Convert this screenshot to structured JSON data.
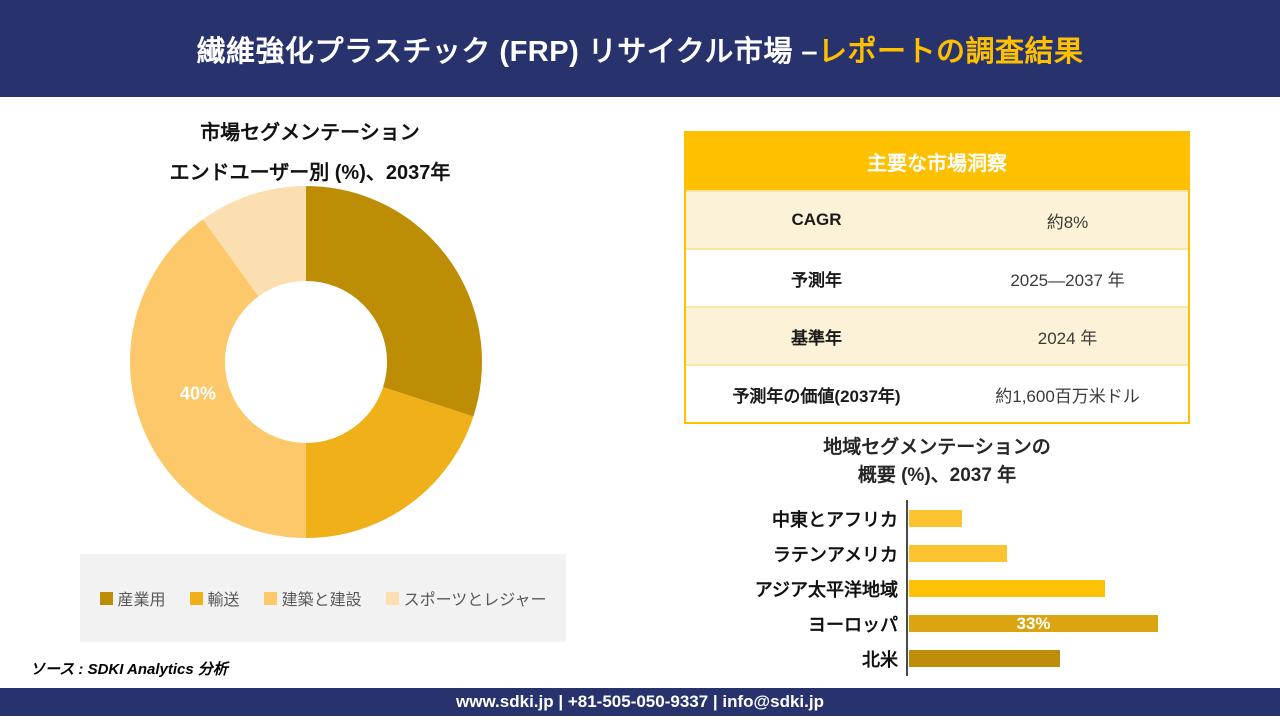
{
  "header": {
    "title_main": "繊維強化プラスチック (FRP) リサイクル市場 –",
    "title_accent": "レポートの調査結果"
  },
  "donut_section": {
    "title_line1": "市場セグメンテーション",
    "title_line2": "エンドユーザー別 (%)、2037年",
    "center_label": "40%"
  },
  "insights_table": {
    "header": "主要な市場洞察",
    "rows": [
      {
        "label": "CAGR",
        "value": "約8%"
      },
      {
        "label": "予測年",
        "value": "2025—2037 年"
      },
      {
        "label": "基準年",
        "value": "2024 年"
      },
      {
        "label": "予測年の価値(2037年)",
        "value": "約1,600百万米ドル"
      }
    ]
  },
  "bar_section": {
    "title_line1": "地域セグメンテーションの",
    "title_line2": "概要 (%)、2037 年"
  },
  "source_text": "ソース : SDKI Analytics 分析",
  "footer_text": "www.sdki.jp | +81-505-050-9337 | info@sdki.jp",
  "colors": {
    "navy": "#28336E",
    "gold": "#FFC000",
    "cream_row": "#FCF2D7",
    "white_row": "#FFFFFF",
    "legend_bg": "#F2F2F2"
  },
  "chart_data": [
    {
      "type": "pie",
      "subtype": "donut",
      "title": "市場セグメンテーション エンドユーザー別 (%)、2037年",
      "categories": [
        "産業用",
        "輸送",
        "建築と建設",
        "スポーツとレジャー"
      ],
      "values": [
        30,
        20,
        40,
        10
      ],
      "colors": [
        "#BE8D06",
        "#F0B01A",
        "#FCC869",
        "#FBDFB0"
      ],
      "visible_data_labels": {
        "建築と建設": "40%"
      },
      "legend_position": "bottom",
      "start_angle_deg": 0,
      "direction": "clockwise"
    },
    {
      "type": "bar",
      "orientation": "horizontal",
      "title": "地域セグメンテーションの 概要 (%)、2037 年",
      "categories": [
        "中東とアフリカ",
        "ラテンアメリカ",
        "アジア太平洋地域",
        "ヨーロッパ",
        "北米"
      ],
      "values": [
        7,
        13,
        26,
        33,
        20
      ],
      "colors": [
        "#FBC430",
        "#FBC430",
        "#FFC103",
        "#DBA511",
        "#BE8E0A"
      ],
      "visible_data_labels": {
        "ヨーロッパ": "33%"
      },
      "xlim": [
        0,
        36
      ],
      "grid": false
    }
  ]
}
